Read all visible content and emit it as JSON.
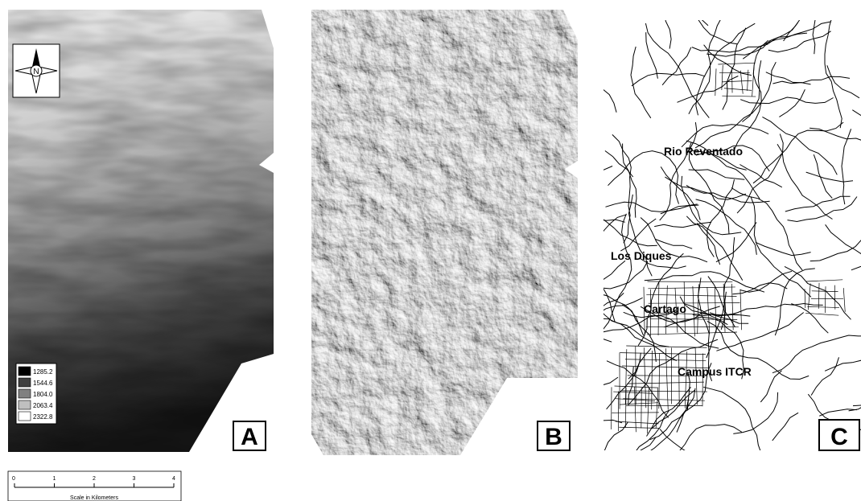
{
  "panels": [
    {
      "label": "A",
      "compass": "N",
      "legend": {
        "entries": [
          "1285.2",
          "1544.6",
          "1804.0",
          "2063.4",
          "2322.8"
        ]
      }
    },
    {
      "label": "B"
    },
    {
      "label": "C",
      "places": [
        "Rio Reventado",
        "Los Diques",
        "Cartago",
        "Campus ITCR"
      ]
    }
  ],
  "scale": {
    "ticks": [
      0,
      1,
      2,
      3,
      4
    ],
    "title": "Scale in Kilometers"
  }
}
